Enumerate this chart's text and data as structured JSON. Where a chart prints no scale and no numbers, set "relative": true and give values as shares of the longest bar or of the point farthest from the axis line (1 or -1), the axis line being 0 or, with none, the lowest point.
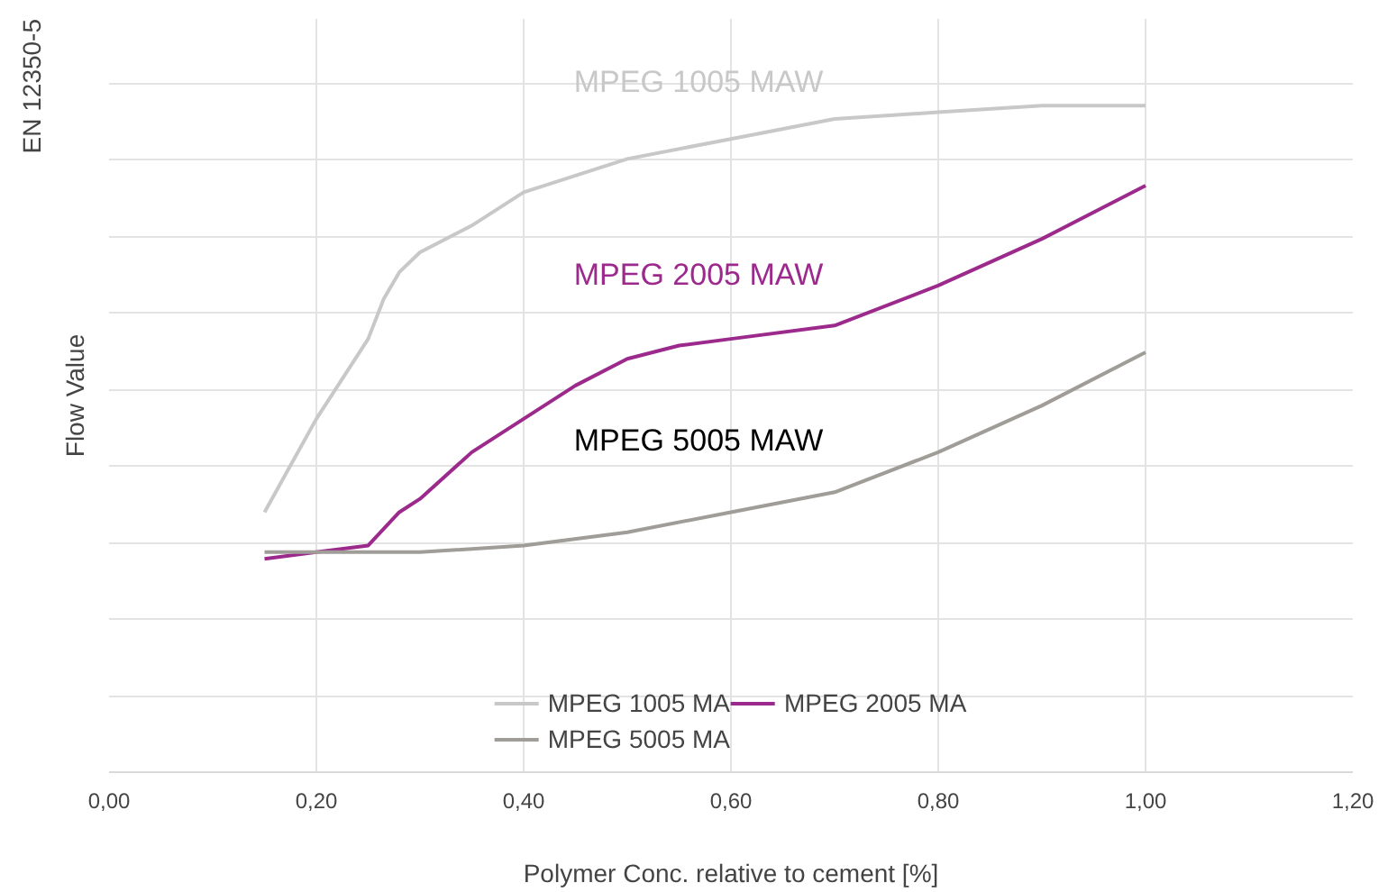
{
  "chart_data": {
    "type": "line",
    "relative": true,
    "xlabel": "Polymer Conc. relative to cement [%]",
    "ylabel": "Flow Value",
    "xlim": [
      0,
      1.2
    ],
    "xticks": [
      {
        "value": 0,
        "label": "0,00"
      },
      {
        "value": 0.2,
        "label": "0,20"
      },
      {
        "value": 0.4,
        "label": "0,40"
      },
      {
        "value": 0.6,
        "label": "0,60"
      },
      {
        "value": 0.8,
        "label": "0,80"
      },
      {
        "value": 1.0,
        "label": "1,00"
      },
      {
        "value": 1.2,
        "label": "1,20"
      }
    ],
    "grid": true,
    "legend": "bottom",
    "marker": "none",
    "line_style": "solid",
    "series": [
      {
        "name": "MPEG 1005 MA",
        "color": "#c8c8c8",
        "x": [
          0.15,
          0.2,
          0.25,
          0.265,
          0.28,
          0.3,
          0.35,
          0.4,
          0.5,
          0.6,
          0.7,
          0.8,
          0.9,
          1.0
        ],
        "values": [
          0.39,
          0.53,
          0.65,
          0.71,
          0.75,
          0.78,
          0.82,
          0.87,
          0.92,
          0.95,
          0.98,
          0.99,
          1.0,
          1.0
        ]
      },
      {
        "name": "MPEG 2005 MA",
        "color": "#9c2a8c",
        "x": [
          0.15,
          0.2,
          0.25,
          0.28,
          0.3,
          0.35,
          0.4,
          0.45,
          0.5,
          0.55,
          0.6,
          0.7,
          0.8,
          0.9,
          1.0
        ],
        "values": [
          0.32,
          0.33,
          0.34,
          0.39,
          0.41,
          0.48,
          0.53,
          0.58,
          0.62,
          0.64,
          0.65,
          0.67,
          0.73,
          0.8,
          0.88
        ]
      },
      {
        "name": "MPEG 5005 MA",
        "color": "#a09d98",
        "x": [
          0.15,
          0.2,
          0.25,
          0.3,
          0.4,
          0.5,
          0.6,
          0.7,
          0.8,
          0.9,
          1.0
        ],
        "values": [
          0.33,
          0.33,
          0.33,
          0.33,
          0.34,
          0.36,
          0.39,
          0.42,
          0.48,
          0.55,
          0.63
        ]
      }
    ],
    "annotations": [
      "EN 12350-5",
      "MPEG 1005 MAW",
      "MPEG 2005 MAW",
      "MPEG 5005 MAW"
    ]
  }
}
